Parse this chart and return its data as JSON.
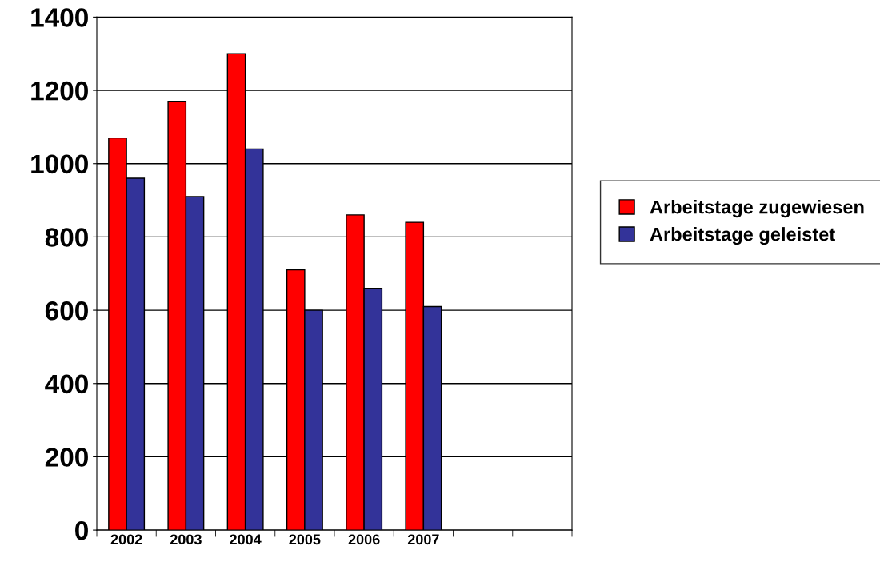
{
  "chart_data": {
    "type": "bar",
    "categories": [
      "2002",
      "2003",
      "2004",
      "2005",
      "2006",
      "2007",
      null,
      null
    ],
    "series": [
      {
        "name": "Arbeitstage zugewiesen",
        "color": "#ff0000",
        "values": [
          1070,
          1170,
          1300,
          710,
          860,
          840,
          null,
          null
        ]
      },
      {
        "name": "Arbeitstage geleistet",
        "color": "#333399",
        "values": [
          960,
          910,
          1040,
          600,
          660,
          610,
          null,
          null
        ]
      }
    ],
    "ylim": [
      0,
      1400
    ],
    "yticks": [
      0,
      200,
      400,
      600,
      800,
      1000,
      1200,
      1400
    ],
    "grid": "y",
    "legend": "right"
  }
}
